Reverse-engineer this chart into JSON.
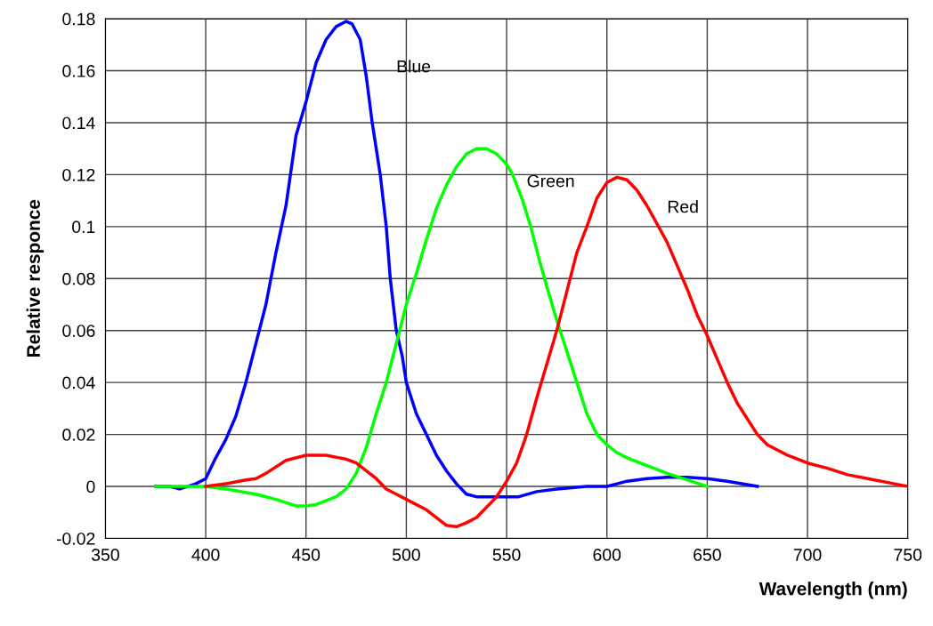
{
  "chart_data": {
    "type": "line",
    "xlabel": "Wavelength (nm)",
    "ylabel": "Relative responce",
    "xlim": [
      350,
      750
    ],
    "xticks": [
      350,
      400,
      450,
      500,
      550,
      600,
      650,
      700,
      750
    ],
    "ylim": [
      -0.02,
      0.18
    ],
    "yticks": [
      {
        "value": -0.02,
        "label": "-0.02"
      },
      0,
      0.02,
      0.04,
      0.06,
      0.08,
      0.1,
      0.12,
      0.14,
      0.16,
      0.18
    ],
    "grid": true,
    "legend": false,
    "marker": "none",
    "line_style": "solid",
    "series": [
      {
        "name": "Blue",
        "color": "#0000ff",
        "x": [
          375,
          382,
          387,
          395,
          400,
          405,
          410,
          415,
          420,
          425,
          430,
          435,
          440,
          445,
          450,
          455,
          460,
          465,
          470,
          473,
          477,
          480,
          483,
          487,
          490,
          492,
          495,
          498,
          500,
          505,
          510,
          515,
          520,
          525,
          530,
          535,
          545,
          556,
          565,
          575,
          590,
          600,
          605,
          610,
          620,
          630,
          640,
          650,
          660,
          675
        ],
        "values": [
          0,
          0,
          -0.001,
          0.001,
          0.003,
          0.011,
          0.018,
          0.027,
          0.04,
          0.055,
          0.07,
          0.09,
          0.108,
          0.135,
          0.148,
          0.163,
          0.172,
          0.177,
          0.179,
          0.178,
          0.172,
          0.158,
          0.14,
          0.12,
          0.1,
          0.08,
          0.06,
          0.05,
          0.04,
          0.028,
          0.02,
          0.012,
          0.006,
          0.001,
          -0.003,
          -0.004,
          -0.004,
          -0.004,
          -0.002,
          -0.001,
          0,
          0,
          0.001,
          0.002,
          0.003,
          0.0035,
          0.0035,
          0.003,
          0.002,
          0
        ]
      },
      {
        "name": "Green",
        "color": "#00ff00",
        "x": [
          375,
          400,
          410,
          425,
          435,
          445,
          450,
          455,
          465,
          470,
          475,
          480,
          485,
          490,
          495,
          500,
          505,
          510,
          515,
          520,
          525,
          530,
          535,
          540,
          545,
          550,
          553,
          558,
          562,
          566,
          570,
          575,
          580,
          585,
          590,
          595,
          600,
          605,
          610,
          620,
          630,
          640,
          650
        ],
        "values": [
          0,
          0,
          -0.001,
          -0.003,
          -0.005,
          -0.0075,
          -0.0075,
          -0.007,
          -0.004,
          -0.001,
          0.005,
          0.015,
          0.028,
          0.04,
          0.055,
          0.07,
          0.082,
          0.095,
          0.107,
          0.116,
          0.123,
          0.128,
          0.13,
          0.13,
          0.128,
          0.124,
          0.12,
          0.11,
          0.1,
          0.088,
          0.077,
          0.064,
          0.052,
          0.04,
          0.028,
          0.02,
          0.016,
          0.013,
          0.011,
          0.008,
          0.005,
          0.0025,
          0
        ]
      },
      {
        "name": "Red",
        "color": "#ff0000",
        "x": [
          400,
          410,
          420,
          425,
          430,
          440,
          450,
          460,
          470,
          475,
          480,
          485,
          490,
          495,
          500,
          510,
          515,
          520,
          525,
          530,
          535,
          540,
          545,
          550,
          555,
          560,
          565,
          570,
          575,
          580,
          585,
          590,
          595,
          600,
          605,
          610,
          615,
          620,
          625,
          630,
          635,
          640,
          645,
          650,
          655,
          660,
          665,
          670,
          675,
          680,
          690,
          700,
          710,
          720,
          730,
          740,
          750
        ],
        "values": [
          0,
          0.001,
          0.0025,
          0.003,
          0.005,
          0.01,
          0.012,
          0.012,
          0.0105,
          0.009,
          0.006,
          0.003,
          -0.001,
          -0.003,
          -0.005,
          -0.009,
          -0.012,
          -0.015,
          -0.0155,
          -0.014,
          -0.012,
          -0.008,
          -0.004,
          0.002,
          0.009,
          0.02,
          0.034,
          0.047,
          0.06,
          0.075,
          0.09,
          0.1,
          0.111,
          0.117,
          0.119,
          0.118,
          0.114,
          0.108,
          0.101,
          0.094,
          0.085,
          0.076,
          0.066,
          0.058,
          0.049,
          0.04,
          0.032,
          0.026,
          0.02,
          0.016,
          0.012,
          0.009,
          0.007,
          0.0045,
          0.003,
          0.0015,
          0
        ]
      }
    ]
  }
}
